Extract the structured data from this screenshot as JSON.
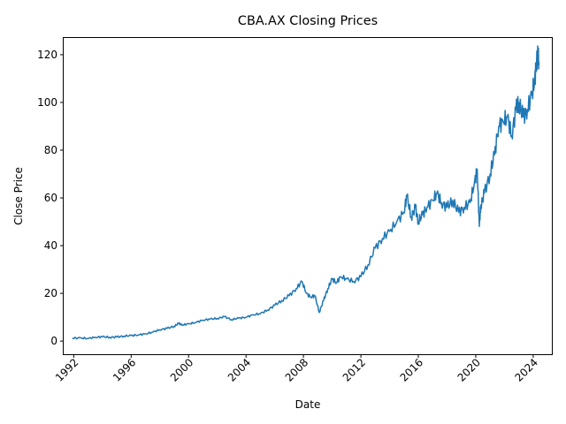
{
  "chart_data": {
    "type": "line",
    "title": "CBA.AX Closing Prices",
    "xlabel": "Date",
    "ylabel": "Close Price",
    "xlim": [
      1991.3,
      2025.3
    ],
    "ylim": [
      -5.5,
      127
    ],
    "x_ticks": [
      1992,
      1996,
      2000,
      2004,
      2008,
      2012,
      2016,
      2020,
      2024
    ],
    "y_ticks": [
      0,
      20,
      40,
      60,
      80,
      100,
      120
    ],
    "grid": false,
    "legend": "none",
    "series": [
      {
        "color": "#1f77b4",
        "x": [
          1991.9,
          1992.5,
          1993.0,
          1993.5,
          1994.0,
          1994.5,
          1995.0,
          1995.5,
          1996.0,
          1996.5,
          1997.0,
          1997.5,
          1998.0,
          1998.5,
          1999.0,
          1999.3,
          1999.6,
          2000.0,
          2000.5,
          2001.0,
          2001.5,
          2002.0,
          2002.5,
          2003.0,
          2003.5,
          2004.0,
          2004.5,
          2005.0,
          2005.5,
          2006.0,
          2006.5,
          2007.0,
          2007.5,
          2007.9,
          2008.2,
          2008.5,
          2008.8,
          2009.1,
          2009.4,
          2009.7,
          2010.0,
          2010.3,
          2010.6,
          2011.0,
          2011.5,
          2012.0,
          2012.5,
          2013.0,
          2013.5,
          2014.0,
          2014.5,
          2015.0,
          2015.2,
          2015.5,
          2015.8,
          2016.0,
          2016.3,
          2016.6,
          2017.0,
          2017.3,
          2017.6,
          2018.0,
          2018.4,
          2018.8,
          2019.2,
          2019.6,
          2019.9,
          2020.1,
          2020.25,
          2020.35,
          2020.6,
          2021.0,
          2021.3,
          2021.6,
          2021.9,
          2022.2,
          2022.5,
          2022.8,
          2023.0,
          2023.3,
          2023.6,
          2023.9,
          2024.1,
          2024.2,
          2024.3,
          2024.4
        ],
        "y": [
          1.2,
          1.3,
          1.1,
          1.6,
          1.8,
          1.6,
          1.7,
          2.1,
          2.3,
          2.6,
          3.0,
          3.7,
          4.8,
          5.3,
          6.2,
          7.4,
          6.8,
          7.2,
          7.8,
          8.8,
          9.2,
          9.5,
          10.2,
          9.0,
          9.6,
          10.0,
          11.0,
          11.5,
          13.0,
          15.0,
          17.0,
          19.0,
          22.0,
          25.0,
          20.0,
          18.5,
          19.0,
          12.0,
          17.0,
          22.0,
          26.0,
          24.5,
          27.0,
          26.0,
          25.0,
          27.0,
          32.0,
          39.0,
          43.0,
          46.0,
          50.0,
          54.0,
          61.0,
          52.0,
          56.0,
          50.0,
          53.0,
          56.0,
          59.0,
          62.0,
          58.0,
          56.0,
          59.0,
          54.0,
          56.0,
          58.0,
          66.0,
          72.0,
          48.0,
          57.0,
          62.0,
          70.0,
          78.0,
          90.0,
          92.0,
          94.0,
          86.0,
          97.0,
          100.0,
          94.0,
          97.0,
          103.0,
          109.0,
          115.0,
          120.0,
          117.0
        ]
      }
    ]
  }
}
